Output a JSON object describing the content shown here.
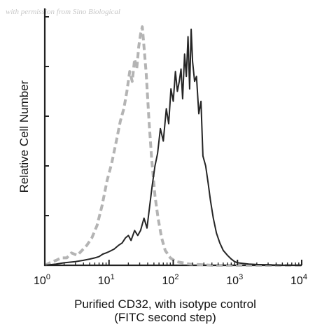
{
  "watermark": "with permission from Sino Biological",
  "chart_data": {
    "type": "line",
    "title": "",
    "xlabel_line1": "Purified CD32, with isotype control",
    "xlabel_line2": "(FITC second step)",
    "ylabel": "Relative Cell Number",
    "x_scale": "log",
    "xlim": [
      1,
      10000
    ],
    "ylim": [
      0,
      100
    ],
    "grid": false,
    "legend": "none",
    "x_ticks": [
      {
        "base": "10",
        "exp": "0"
      },
      {
        "base": "10",
        "exp": "1"
      },
      {
        "base": "10",
        "exp": "2"
      },
      {
        "base": "10",
        "exp": "3"
      },
      {
        "base": "10",
        "exp": "4"
      }
    ],
    "x_tick_values": [
      1,
      10,
      100,
      1000,
      10000
    ],
    "y_major_ticks": [
      0,
      20,
      40,
      60,
      80,
      100
    ],
    "series": [
      {
        "role": "isotype control",
        "color": "#b4b4b4",
        "dash": true,
        "x": [
          1,
          1.2,
          1.5,
          1.8,
          2.2,
          2.6,
          3.2,
          3.8,
          4.5,
          5.4,
          6.5,
          7.8,
          9.3,
          11,
          13,
          15,
          17,
          19,
          21,
          23,
          25,
          27,
          29,
          31,
          33,
          35,
          38,
          42,
          46,
          52,
          58,
          66,
          75,
          90,
          110,
          140,
          180,
          250,
          400,
          700,
          1500,
          4000,
          10000
        ],
        "y": [
          0,
          1,
          2,
          3,
          3,
          5,
          4,
          6,
          8,
          11,
          16,
          24,
          34,
          41,
          50,
          58,
          63,
          70,
          78,
          74,
          83,
          79,
          88,
          93,
          96,
          88,
          77,
          58,
          43,
          28,
          19,
          11,
          6,
          3,
          1.5,
          1,
          0.5,
          0.3,
          0,
          0,
          0,
          0,
          0
        ]
      },
      {
        "role": "Purified CD32",
        "color": "#252525",
        "dash": false,
        "x": [
          1,
          1.5,
          2,
          3,
          4,
          5,
          6,
          7,
          8,
          9,
          10,
          12,
          14,
          16,
          18,
          20,
          22,
          25,
          28,
          31,
          35,
          39,
          43,
          47,
          52,
          57,
          63,
          70,
          78,
          85,
          92,
          100,
          108,
          116,
          124,
          132,
          140,
          150,
          160,
          170,
          180,
          190,
          200,
          215,
          230,
          250,
          270,
          290,
          320,
          350,
          380,
          420,
          470,
          530,
          600,
          700,
          800,
          900,
          1000,
          1200,
          1500,
          2000,
          3000,
          5000,
          10000
        ],
        "y": [
          0,
          0.5,
          1,
          1.5,
          2,
          2.5,
          3,
          3.5,
          4.5,
          5,
          5.5,
          6.5,
          8,
          9,
          11,
          12,
          10,
          14,
          12,
          14,
          19,
          15,
          24,
          32,
          40,
          45,
          55,
          50,
          63,
          57,
          71,
          66,
          78,
          70,
          74,
          79,
          67,
          85,
          76,
          92,
          71,
          95,
          82,
          74,
          76,
          61,
          66,
          44,
          40,
          33,
          26,
          19,
          13,
          9,
          6,
          4,
          2.5,
          1.5,
          1,
          0.8,
          0.5,
          0.3,
          0.2,
          0,
          0
        ]
      }
    ]
  }
}
